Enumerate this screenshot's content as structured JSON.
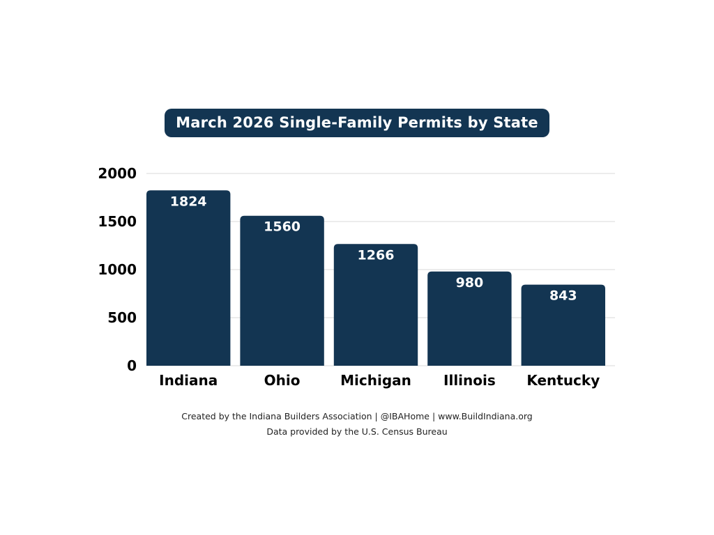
{
  "chart_data": {
    "type": "bar",
    "title": "March 2026 Single-Family Permits by State",
    "categories": [
      "Indiana",
      "Ohio",
      "Michigan",
      "Illinois",
      "Kentucky"
    ],
    "values": [
      1824,
      1560,
      1266,
      980,
      843
    ],
    "data_labels": [
      "1824",
      "1560",
      "1266",
      "980",
      "843"
    ],
    "xlabel": "",
    "ylabel": "",
    "ylim": [
      0,
      2000
    ],
    "yticks": [
      0,
      500,
      1000,
      1500,
      2000
    ],
    "ytick_labels": [
      "0",
      "500",
      "1000",
      "1500",
      "2000"
    ],
    "grid": true,
    "legend": "none"
  },
  "credits": {
    "line1": "Created by the Indiana Builders Association | @IBAHome | www.BuildIndiana.org",
    "line2": "Data provided by the U.S. Census Bureau"
  },
  "colors": {
    "bar": "#133552",
    "title_background": "#133552",
    "grid": "#d9d9d9",
    "axis_text": "#000000",
    "bar_label": "#ffffff"
  }
}
